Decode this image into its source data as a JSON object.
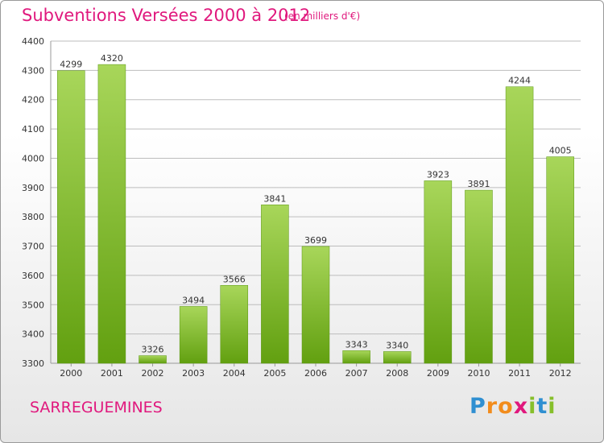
{
  "header": {
    "title": "Subventions Versées 2000 à 2012",
    "subtitle": "(en milliers d'€)"
  },
  "footer": {
    "town": "SARREGUEMINES",
    "logo_letters": [
      "P",
      "r",
      "o",
      "x",
      "i",
      "t",
      "i"
    ],
    "logo_colors": [
      "#2f8fd1",
      "#f28c1c",
      "#f28c1c",
      "#e0187d",
      "#86bf2b",
      "#2f8fd1",
      "#86bf2b"
    ]
  },
  "colors": {
    "bar_light": "#a8d65a",
    "bar_dark": "#62a010",
    "grid": "#bdbdbd",
    "accent": "#e0187d"
  },
  "chart_data": {
    "type": "bar",
    "title": "Subventions Versées 2000 à 2012",
    "subtitle": "(en milliers d'€)",
    "categories": [
      "2000",
      "2001",
      "2002",
      "2003",
      "2004",
      "2005",
      "2006",
      "2007",
      "2008",
      "2009",
      "2010",
      "2011",
      "2012"
    ],
    "values": [
      4299,
      4320,
      3326,
      3494,
      3566,
      3841,
      3699,
      3343,
      3340,
      3923,
      3891,
      4244,
      4005
    ],
    "ylim": [
      3300,
      4400
    ],
    "yticks": [
      3300,
      3400,
      3500,
      3600,
      3700,
      3800,
      3900,
      4000,
      4100,
      4200,
      4300,
      4400
    ],
    "grid": true,
    "xlabel": "",
    "ylabel": ""
  }
}
